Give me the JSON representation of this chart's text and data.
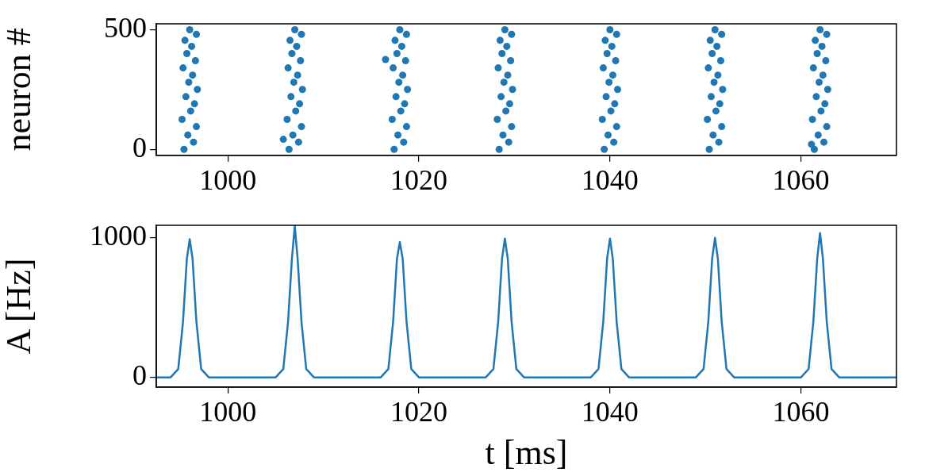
{
  "chart_data": [
    {
      "type": "scatter",
      "ylabel": "neuron #",
      "xlim": [
        992.5,
        1070
      ],
      "xticks": [
        1000,
        1020,
        1040,
        1060
      ],
      "ylim": [
        -25,
        524
      ],
      "yticks": [
        0,
        500
      ],
      "grid": false,
      "legend": false,
      "marker": "circle",
      "series": [
        {
          "color": "#1f77b4",
          "x": [
            995.4,
            996.4,
            995.8,
            996.7,
            995.2,
            996.1,
            996.5,
            995.6,
            996.8,
            995.9,
            996.3,
            995.3,
            996.6,
            995.7,
            996.2,
            995.5,
            996.7,
            996,
            1006.4,
            1007.4,
            1006.8,
            1007.7,
            1006.2,
            1007.1,
            1007.5,
            1006.6,
            1007.8,
            1006.9,
            1007.3,
            1006.3,
            1007.6,
            1006.7,
            1007.2,
            1006.5,
            1007.7,
            1007,
            1017.4,
            1018.4,
            1017.8,
            1018.7,
            1017.2,
            1018.1,
            1018.5,
            1017.6,
            1018.8,
            1017.9,
            1018.3,
            1017.3,
            1018.6,
            1017.7,
            1018.2,
            1017.5,
            1018.7,
            1018,
            1028.4,
            1029.4,
            1028.8,
            1029.7,
            1028.2,
            1029.1,
            1029.5,
            1028.6,
            1029.8,
            1028.9,
            1029.3,
            1028.3,
            1029.6,
            1028.7,
            1029.2,
            1028.5,
            1029.7,
            1029,
            1039.4,
            1040.4,
            1039.8,
            1040.7,
            1039.2,
            1040.1,
            1040.5,
            1039.6,
            1040.8,
            1039.9,
            1040.3,
            1039.3,
            1040.6,
            1039.7,
            1040.2,
            1039.5,
            1040.7,
            1040,
            1050.4,
            1051.4,
            1050.8,
            1051.7,
            1050.2,
            1051.1,
            1051.5,
            1050.6,
            1051.8,
            1050.9,
            1051.3,
            1050.3,
            1051.6,
            1050.7,
            1051.2,
            1050.5,
            1051.7,
            1051,
            1061.4,
            1062.4,
            1061.8,
            1062.7,
            1061.2,
            1062.1,
            1062.5,
            1061.6,
            1062.8,
            1061.9,
            1062.3,
            1061.3,
            1062.6,
            1061.7,
            1062.2,
            1061.5,
            1062.7,
            1062,
            1016.5,
            1005.8,
            1061.1
          ],
          "values": [
            0,
            30,
            60,
            95,
            125,
            160,
            190,
            220,
            250,
            280,
            310,
            340,
            370,
            400,
            430,
            455,
            480,
            499,
            0,
            30,
            60,
            95,
            125,
            160,
            190,
            220,
            250,
            280,
            310,
            340,
            370,
            400,
            430,
            455,
            480,
            499,
            0,
            30,
            60,
            95,
            125,
            160,
            190,
            220,
            250,
            280,
            310,
            340,
            370,
            400,
            430,
            455,
            480,
            499,
            0,
            30,
            60,
            95,
            125,
            160,
            190,
            220,
            250,
            280,
            310,
            340,
            370,
            400,
            430,
            455,
            480,
            499,
            0,
            30,
            60,
            95,
            125,
            160,
            190,
            220,
            250,
            280,
            310,
            340,
            370,
            400,
            430,
            455,
            480,
            499,
            0,
            30,
            60,
            95,
            125,
            160,
            190,
            220,
            250,
            280,
            310,
            340,
            370,
            400,
            430,
            455,
            480,
            499,
            0,
            30,
            60,
            95,
            125,
            160,
            190,
            220,
            250,
            280,
            310,
            340,
            370,
            400,
            430,
            455,
            480,
            499,
            375,
            42,
            21
          ]
        }
      ]
    },
    {
      "type": "line",
      "xlabel": "t [ms]",
      "ylabel": "A [Hz]",
      "xlim": [
        992.5,
        1070
      ],
      "xticks": [
        1000,
        1020,
        1040,
        1060
      ],
      "ylim": [
        -70,
        1090
      ],
      "yticks": [
        0,
        1000
      ],
      "grid": false,
      "legend": false,
      "marker": "none",
      "line_style": "solid",
      "series": [
        {
          "color": "#1f77b4",
          "x": [
            992.5,
            994,
            994.8,
            995.3,
            995.7,
            996,
            996.3,
            996.7,
            997.2,
            998,
            1005,
            1005.8,
            1006.3,
            1006.7,
            1007,
            1007.3,
            1007.7,
            1008.2,
            1009,
            1016,
            1016.8,
            1017.3,
            1017.7,
            1018,
            1018.3,
            1018.7,
            1019.2,
            1020,
            1027,
            1027.8,
            1028.3,
            1028.7,
            1029,
            1029.3,
            1029.7,
            1030.2,
            1031,
            1038,
            1038.8,
            1039.3,
            1039.7,
            1040,
            1040.3,
            1040.7,
            1041.2,
            1042,
            1049,
            1049.8,
            1050.3,
            1050.7,
            1051,
            1051.3,
            1051.7,
            1052.2,
            1053,
            1060,
            1060.8,
            1061.3,
            1061.7,
            1062,
            1062.3,
            1062.7,
            1063.2,
            1064,
            1070
          ],
          "values": [
            0,
            0,
            60,
            400,
            850,
            990,
            850,
            400,
            60,
            0,
            0,
            60,
            400,
            850,
            1085,
            850,
            400,
            60,
            0,
            0,
            60,
            400,
            850,
            970,
            850,
            400,
            60,
            0,
            0,
            60,
            400,
            850,
            995,
            850,
            400,
            60,
            0,
            0,
            60,
            400,
            850,
            995,
            850,
            400,
            60,
            0,
            0,
            60,
            400,
            850,
            1000,
            850,
            400,
            60,
            0,
            0,
            60,
            400,
            850,
            1035,
            850,
            400,
            60,
            0,
            0
          ]
        }
      ]
    }
  ]
}
